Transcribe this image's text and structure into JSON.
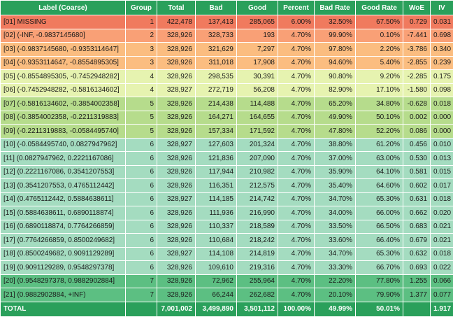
{
  "headers": [
    "Label (Coarse)",
    "Group",
    "Total",
    "Bad",
    "Good",
    "Percent",
    "Bad Rate",
    "Good Rate",
    "WoE",
    "IV"
  ],
  "group_colors": {
    "1": "#f07a5e",
    "2": "#f9a076",
    "3": "#fbbd80",
    "4": "#e6f3b0",
    "5": "#b6dc8c",
    "6": "#a4dcc0",
    "7": "#5cbf82"
  },
  "rows": [
    [
      "[01] MISSING",
      "1",
      "422,478",
      "137,413",
      "285,065",
      "6.00%",
      "32.50%",
      "67.50%",
      "0.729",
      "0.031"
    ],
    [
      "[02] (-INF, -0.9837145680]",
      "2",
      "328,926",
      "328,733",
      "193",
      "4.70%",
      "99.90%",
      "0.10%",
      "-7.441",
      "0.698"
    ],
    [
      "[03] (-0.9837145680, -0.9353114647]",
      "3",
      "328,926",
      "321,629",
      "7,297",
      "4.70%",
      "97.80%",
      "2.20%",
      "-3.786",
      "0.340"
    ],
    [
      "[04] (-0.9353114647, -0.8554895305]",
      "3",
      "328,926",
      "311,018",
      "17,908",
      "4.70%",
      "94.60%",
      "5.40%",
      "-2.855",
      "0.239"
    ],
    [
      "[05] (-0.8554895305, -0.7452948282]",
      "4",
      "328,926",
      "298,535",
      "30,391",
      "4.70%",
      "90.80%",
      "9.20%",
      "-2.285",
      "0.175"
    ],
    [
      "[06] (-0.7452948282, -0.5816134602]",
      "4",
      "328,927",
      "272,719",
      "56,208",
      "4.70%",
      "82.90%",
      "17.10%",
      "-1.580",
      "0.098"
    ],
    [
      "[07] (-0.5816134602, -0.3854002358]",
      "5",
      "328,926",
      "214,438",
      "114,488",
      "4.70%",
      "65.20%",
      "34.80%",
      "-0.628",
      "0.018"
    ],
    [
      "[08] (-0.3854002358, -0.2211319883]",
      "5",
      "328,926",
      "164,271",
      "164,655",
      "4.70%",
      "49.90%",
      "50.10%",
      "0.002",
      "0.000"
    ],
    [
      "[09] (-0.2211319883, -0.0584495740]",
      "5",
      "328,926",
      "157,334",
      "171,592",
      "4.70%",
      "47.80%",
      "52.20%",
      "0.086",
      "0.000"
    ],
    [
      "[10] (-0.0584495740, 0.0827947962]",
      "6",
      "328,927",
      "127,603",
      "201,324",
      "4.70%",
      "38.80%",
      "61.20%",
      "0.456",
      "0.010"
    ],
    [
      "[11] (0.0827947962, 0.2221167086]",
      "6",
      "328,926",
      "121,836",
      "207,090",
      "4.70%",
      "37.00%",
      "63.00%",
      "0.530",
      "0.013"
    ],
    [
      "[12] (0.2221167086, 0.3541207553]",
      "6",
      "328,926",
      "117,944",
      "210,982",
      "4.70%",
      "35.90%",
      "64.10%",
      "0.581",
      "0.015"
    ],
    [
      "[13] (0.3541207553, 0.4765112442]",
      "6",
      "328,926",
      "116,351",
      "212,575",
      "4.70%",
      "35.40%",
      "64.60%",
      "0.602",
      "0.017"
    ],
    [
      "[14] (0.4765112442, 0.5884638611]",
      "6",
      "328,927",
      "114,185",
      "214,742",
      "4.70%",
      "34.70%",
      "65.30%",
      "0.631",
      "0.018"
    ],
    [
      "[15] (0.5884638611, 0.6890118874]",
      "6",
      "328,926",
      "111,936",
      "216,990",
      "4.70%",
      "34.00%",
      "66.00%",
      "0.662",
      "0.020"
    ],
    [
      "[16] (0.6890118874, 0.7764266859]",
      "6",
      "328,926",
      "110,337",
      "218,589",
      "4.70%",
      "33.50%",
      "66.50%",
      "0.683",
      "0.021"
    ],
    [
      "[17] (0.7764266859, 0.8500249682]",
      "6",
      "328,926",
      "110,684",
      "218,242",
      "4.70%",
      "33.60%",
      "66.40%",
      "0.679",
      "0.021"
    ],
    [
      "[18] (0.8500249682, 0.9091129289]",
      "6",
      "328,927",
      "114,108",
      "214,819",
      "4.70%",
      "34.70%",
      "65.30%",
      "0.632",
      "0.018"
    ],
    [
      "[19] (0.9091129289, 0.9548297378]",
      "6",
      "328,926",
      "109,610",
      "219,316",
      "4.70%",
      "33.30%",
      "66.70%",
      "0.693",
      "0.022"
    ],
    [
      "[20] (0.9548297378, 0.9882902884]",
      "7",
      "328,926",
      "72,962",
      "255,964",
      "4.70%",
      "22.20%",
      "77.80%",
      "1.255",
      "0.066"
    ],
    [
      "[21] (0.9882902884, +INF)",
      "7",
      "328,926",
      "66,244",
      "262,682",
      "4.70%",
      "20.10%",
      "79.90%",
      "1.377",
      "0.077"
    ]
  ],
  "total": [
    "TOTAL",
    "",
    "7,001,002",
    "3,499,890",
    "3,501,112",
    "100.00%",
    "49.99%",
    "50.01%",
    "",
    "1.917"
  ]
}
